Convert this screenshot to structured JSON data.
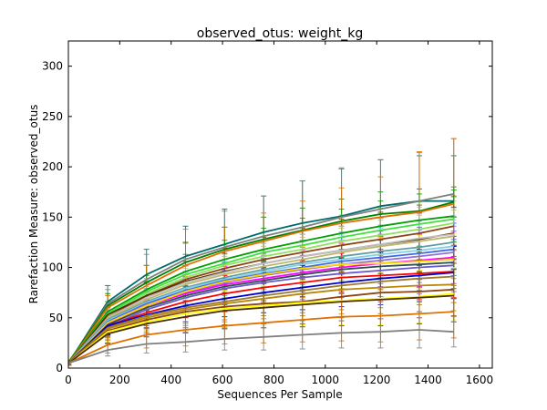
{
  "chart_data": {
    "type": "line",
    "title": "observed_otus: weight_kg",
    "xlabel": "Sequences Per Sample",
    "ylabel": "Rarefaction Measure: observed_otus",
    "xlim": [
      0,
      1650
    ],
    "ylim": [
      0,
      325
    ],
    "x_ticks": [
      "0",
      "200",
      "400",
      "600",
      "800",
      "1000",
      "1200",
      "1400",
      "1600"
    ],
    "y_ticks": [
      "0",
      "50",
      "100",
      "150",
      "200",
      "250",
      "300"
    ],
    "grid": false,
    "legend": "none",
    "error_bars": true,
    "x": [
      1,
      153,
      304,
      456,
      608,
      760,
      911,
      1063,
      1215,
      1366,
      1500
    ],
    "series": [
      {
        "color": "#006b6b",
        "values": [
          5,
          66,
          93,
          111,
          123,
          135,
          144,
          151,
          161,
          166,
          166
        ],
        "err": [
          2,
          16,
          25,
          30,
          35,
          36,
          42,
          47,
          46,
          45,
          45
        ]
      },
      {
        "color": "#808080",
        "values": [
          5,
          64,
          88,
          108,
          120,
          131,
          140,
          150,
          158,
          166,
          173
        ],
        "err": [
          2,
          14,
          25,
          30,
          36,
          40,
          46,
          49,
          49,
          48,
          55
        ]
      },
      {
        "color": "#008000",
        "values": [
          6,
          62,
          85,
          105,
          118,
          128,
          137,
          146,
          153,
          156,
          165
        ],
        "err": [
          2,
          12,
          17,
          20,
          22,
          22,
          22,
          22,
          22,
          22,
          15
        ]
      },
      {
        "color": "#e07000",
        "values": [
          5,
          60,
          82,
          102,
          116,
          126,
          136,
          144,
          150,
          155,
          163
        ],
        "err": [
          2,
          12,
          20,
          22,
          24,
          28,
          30,
          35,
          40,
          60,
          65
        ]
      },
      {
        "color": "#00a000",
        "values": [
          5,
          56,
          78,
          96,
          108,
          118,
          126,
          134,
          141,
          147,
          151
        ],
        "err": [
          2,
          10,
          14,
          17,
          19,
          21,
          23,
          24,
          25,
          26,
          26
        ]
      },
      {
        "color": "#40e040",
        "values": [
          5,
          54,
          76,
          93,
          104,
          115,
          122,
          130,
          137,
          143,
          148
        ],
        "err": [
          2,
          9,
          13,
          16,
          18,
          20,
          22,
          22,
          22,
          22,
          22
        ]
      },
      {
        "color": "#90e060",
        "values": [
          5,
          52,
          74,
          90,
          102,
          111,
          118,
          126,
          132,
          138,
          144
        ],
        "err": [
          2,
          9,
          13,
          16,
          18,
          20,
          22,
          22,
          22,
          22,
          22
        ]
      },
      {
        "color": "#8b4513",
        "values": [
          5,
          50,
          72,
          88,
          99,
          108,
          115,
          122,
          128,
          134,
          141
        ],
        "err": [
          2,
          10,
          14,
          18,
          20,
          22,
          24,
          26,
          27,
          28,
          30
        ]
      },
      {
        "color": "#5a3000",
        "values": [
          5,
          53,
          72,
          86,
          96,
          104,
          111,
          117,
          123,
          128,
          134
        ],
        "err": [
          2,
          9,
          13,
          16,
          18,
          20,
          22,
          24,
          26,
          26,
          26
        ]
      },
      {
        "color": "#c0c0c0",
        "values": [
          5,
          50,
          70,
          85,
          95,
          104,
          111,
          117,
          123,
          129,
          133
        ],
        "err": [
          2,
          9,
          13,
          16,
          18,
          20,
          22,
          24,
          26,
          26,
          26
        ]
      },
      {
        "color": "#bdb76b",
        "values": [
          5,
          49,
          68,
          83,
          93,
          101,
          108,
          115,
          121,
          126,
          131
        ],
        "err": [
          2,
          9,
          13,
          16,
          18,
          20,
          22,
          24,
          26,
          26,
          26
        ]
      },
      {
        "color": "#5f9ea0",
        "values": [
          5,
          48,
          66,
          80,
          90,
          98,
          105,
          111,
          116,
          120,
          125
        ],
        "err": [
          2,
          9,
          13,
          16,
          18,
          20,
          22,
          24,
          26,
          26,
          26
        ]
      },
      {
        "color": "#87ceeb",
        "values": [
          5,
          47,
          65,
          79,
          88,
          96,
          103,
          108,
          113,
          117,
          121
        ],
        "err": [
          2,
          9,
          13,
          16,
          18,
          20,
          22,
          24,
          26,
          26,
          26
        ]
      },
      {
        "color": "#4169e1",
        "values": [
          5,
          46,
          64,
          77,
          87,
          94,
          100,
          106,
          110,
          114,
          118
        ],
        "err": [
          2,
          9,
          13,
          16,
          18,
          20,
          22,
          24,
          26,
          26,
          26
        ]
      },
      {
        "color": "#9370db",
        "values": [
          5,
          45,
          63,
          75,
          85,
          92,
          98,
          103,
          107,
          111,
          115
        ],
        "err": [
          2,
          9,
          13,
          16,
          18,
          20,
          22,
          24,
          26,
          26,
          26
        ]
      },
      {
        "color": "#ff00ff",
        "values": [
          5,
          44,
          62,
          74,
          83,
          89,
          95,
          100,
          104,
          107,
          110
        ],
        "err": [
          2,
          9,
          13,
          16,
          18,
          20,
          22,
          24,
          26,
          26,
          26
        ]
      },
      {
        "color": "#ffd700",
        "values": [
          5,
          45,
          62,
          76,
          86,
          93,
          99,
          103,
          104,
          106,
          108
        ],
        "err": [
          2,
          9,
          13,
          16,
          18,
          20,
          22,
          24,
          26,
          26,
          26
        ]
      },
      {
        "color": "#2f4f4f",
        "values": [
          5,
          43,
          60,
          72,
          81,
          87,
          93,
          98,
          101,
          103,
          105
        ],
        "err": [
          2,
          9,
          13,
          16,
          18,
          20,
          22,
          24,
          26,
          26,
          26
        ]
      },
      {
        "color": "#6a5acd",
        "values": [
          5,
          41,
          58,
          70,
          79,
          85,
          90,
          94,
          97,
          100,
          102
        ],
        "err": [
          2,
          9,
          13,
          16,
          18,
          20,
          22,
          24,
          26,
          26,
          26
        ]
      },
      {
        "color": "#ff0000",
        "values": [
          5,
          42,
          55,
          66,
          74,
          80,
          85,
          90,
          92,
          94,
          96
        ],
        "err": [
          2,
          9,
          13,
          16,
          18,
          20,
          22,
          24,
          26,
          26,
          26
        ]
      },
      {
        "color": "#0000cd",
        "values": [
          5,
          42,
          53,
          62,
          69,
          75,
          80,
          85,
          89,
          92,
          95
        ],
        "err": [
          2,
          9,
          13,
          16,
          18,
          20,
          22,
          24,
          26,
          26,
          26
        ]
      },
      {
        "color": "#9b7a2a",
        "values": [
          5,
          40,
          52,
          60,
          66,
          72,
          77,
          82,
          86,
          89,
          91
        ],
        "err": [
          2,
          9,
          13,
          16,
          18,
          20,
          22,
          24,
          26,
          26,
          26
        ]
      },
      {
        "color": "#b8860b",
        "values": [
          5,
          39,
          50,
          58,
          64,
          69,
          74,
          78,
          80,
          82,
          83
        ],
        "err": [
          2,
          9,
          13,
          16,
          18,
          20,
          22,
          24,
          26,
          26,
          26
        ]
      },
      {
        "color": "#8b4513",
        "values": [
          5,
          37,
          48,
          56,
          61,
          64,
          66,
          71,
          75,
          76,
          78
        ],
        "err": [
          2,
          9,
          13,
          16,
          18,
          20,
          22,
          24,
          26,
          26,
          26
        ]
      },
      {
        "color": "#ffff00",
        "values": [
          5,
          36,
          46,
          54,
          59,
          62,
          65,
          67,
          69,
          71,
          74
        ],
        "err": [
          2,
          9,
          13,
          16,
          18,
          20,
          22,
          24,
          26,
          26,
          26
        ]
      },
      {
        "color": "#4a3000",
        "values": [
          5,
          34,
          44,
          51,
          57,
          60,
          63,
          66,
          68,
          70,
          72
        ],
        "err": [
          2,
          9,
          13,
          16,
          18,
          20,
          22,
          24,
          26,
          26,
          26
        ]
      },
      {
        "color": "#e07000",
        "values": [
          5,
          23,
          33,
          38,
          42,
          45,
          48,
          51,
          52,
          54,
          56
        ],
        "err": [
          2,
          8,
          13,
          16,
          18,
          20,
          22,
          24,
          26,
          26,
          26
        ]
      },
      {
        "color": "#808080",
        "values": [
          5,
          18,
          24,
          26,
          29,
          31,
          33,
          35,
          36,
          38,
          36
        ],
        "err": [
          2,
          6,
          9,
          10,
          11,
          13,
          14,
          15,
          16,
          18,
          15
        ]
      }
    ]
  }
}
